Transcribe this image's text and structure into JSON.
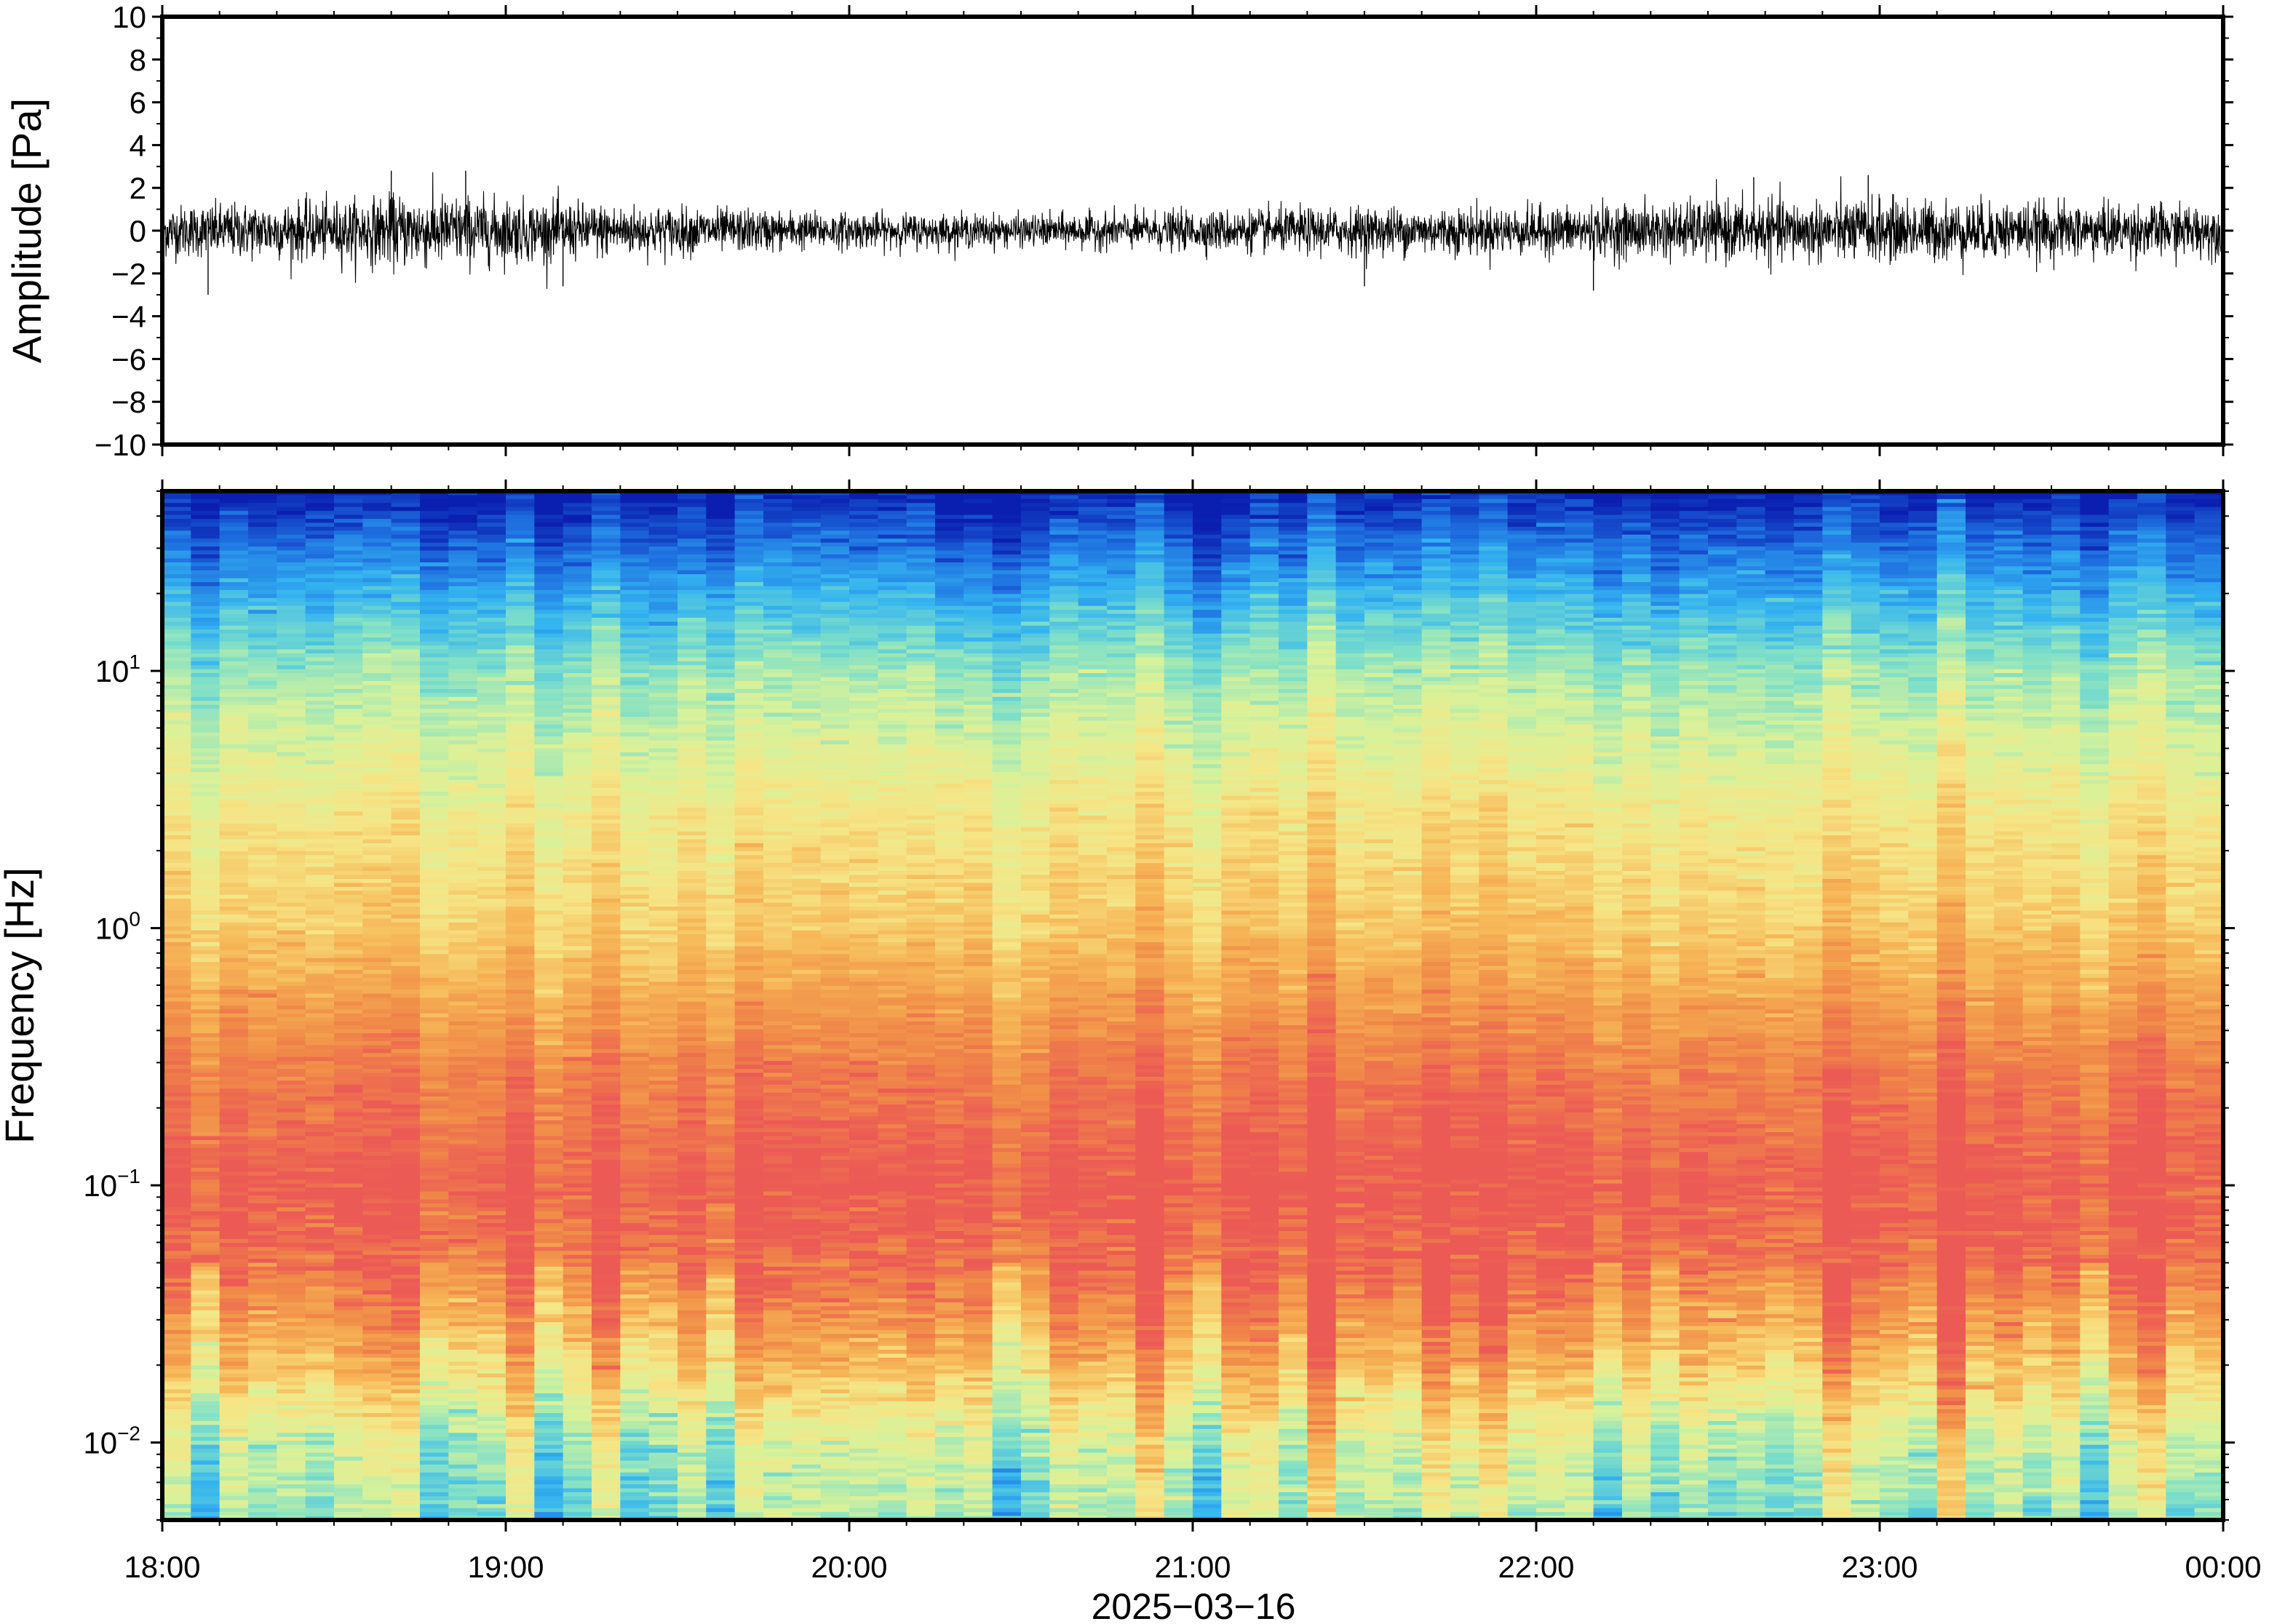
{
  "chart_data": [
    {
      "type": "line",
      "panel": "waveform",
      "ylabel": "Amplitude [Pa]",
      "ylim": [
        -10,
        10
      ],
      "yticks": [
        10,
        8,
        6,
        4,
        2,
        0,
        -2,
        -4,
        -6,
        -8,
        -10
      ],
      "ytick_labels": [
        "10",
        "8",
        "6",
        "4",
        "2",
        "0",
        "−2",
        "−4",
        "−6",
        "−8",
        "−10"
      ],
      "xlim": [
        "18:00",
        "00:00"
      ],
      "series": [
        {
          "color": "#000000",
          "envelope_note_free": true,
          "amplitude_envelope": [
            {
              "x": "18:00",
              "value": 1.3
            },
            {
              "x": "18:30",
              "value": 1.5
            },
            {
              "x": "18:45",
              "value": 1.9
            },
            {
              "x": "19:00",
              "value": 1.6
            },
            {
              "x": "19:30",
              "value": 1.2
            },
            {
              "x": "20:00",
              "value": 0.9
            },
            {
              "x": "20:30",
              "value": 0.8
            },
            {
              "x": "21:00",
              "value": 1.0
            },
            {
              "x": "21:30",
              "value": 1.2
            },
            {
              "x": "22:00",
              "value": 1.2
            },
            {
              "x": "22:30",
              "value": 1.5
            },
            {
              "x": "23:00",
              "value": 1.6
            },
            {
              "x": "23:30",
              "value": 1.4
            },
            {
              "x": "00:00",
              "value": 1.3
            }
          ],
          "peaks": [
            {
              "x": "18:08",
              "value": -3.0
            },
            {
              "x": "18:40",
              "value": 2.8
            },
            {
              "x": "18:53",
              "value": 2.8
            },
            {
              "x": "19:10",
              "value": -2.6
            },
            {
              "x": "21:30",
              "value": -2.6
            },
            {
              "x": "22:10",
              "value": -2.8
            },
            {
              "x": "22:38",
              "value": 2.5
            },
            {
              "x": "22:58",
              "value": 2.6
            }
          ]
        }
      ]
    },
    {
      "type": "heatmap",
      "panel": "spectrogram",
      "ylabel": "Frequency [Hz]",
      "yscale": "log",
      "ylim": [
        0.005,
        50
      ],
      "yticks": [
        0.01,
        0.1,
        1,
        10
      ],
      "ytick_labels": [
        {
          "base": "10",
          "exp": "−2"
        },
        {
          "base": "10",
          "exp": "−1"
        },
        {
          "base": "10",
          "exp": "0"
        },
        {
          "base": "10",
          "exp": "1"
        }
      ],
      "xlim": [
        "18:00",
        "00:00"
      ],
      "xticks": [
        "18:00",
        "19:00",
        "20:00",
        "21:00",
        "22:00",
        "23:00",
        "00:00"
      ],
      "xlabel": "2025−03−16",
      "colormap": "rainbow",
      "colormap_stops": [
        "#0a1fb0",
        "#1e6fe0",
        "#34b4f0",
        "#7fe0c8",
        "#d8f29a",
        "#f6e585",
        "#f6b556",
        "#f08a48",
        "#ec5a55"
      ],
      "power_profile_by_frequency": [
        {
          "freq_hz": 0.005,
          "level": 0.42
        },
        {
          "freq_hz": 0.01,
          "level": 0.5
        },
        {
          "freq_hz": 0.02,
          "level": 0.72
        },
        {
          "freq_hz": 0.05,
          "level": 0.95
        },
        {
          "freq_hz": 0.1,
          "level": 1.0
        },
        {
          "freq_hz": 0.3,
          "level": 0.9
        },
        {
          "freq_hz": 1,
          "level": 0.7
        },
        {
          "freq_hz": 3,
          "level": 0.6
        },
        {
          "freq_hz": 10,
          "level": 0.42
        },
        {
          "freq_hz": 20,
          "level": 0.25
        },
        {
          "freq_hz": 50,
          "level": 0.0
        }
      ],
      "quiet_times": [
        "20:20",
        "21:05"
      ]
    }
  ],
  "axes": {
    "date": "2025−03−16",
    "amplitude_title": "Amplitude [Pa]",
    "frequency_title": "Frequency [Hz]",
    "x_tick_labels": [
      "18:00",
      "19:00",
      "20:00",
      "21:00",
      "22:00",
      "23:00",
      "00:00"
    ]
  }
}
